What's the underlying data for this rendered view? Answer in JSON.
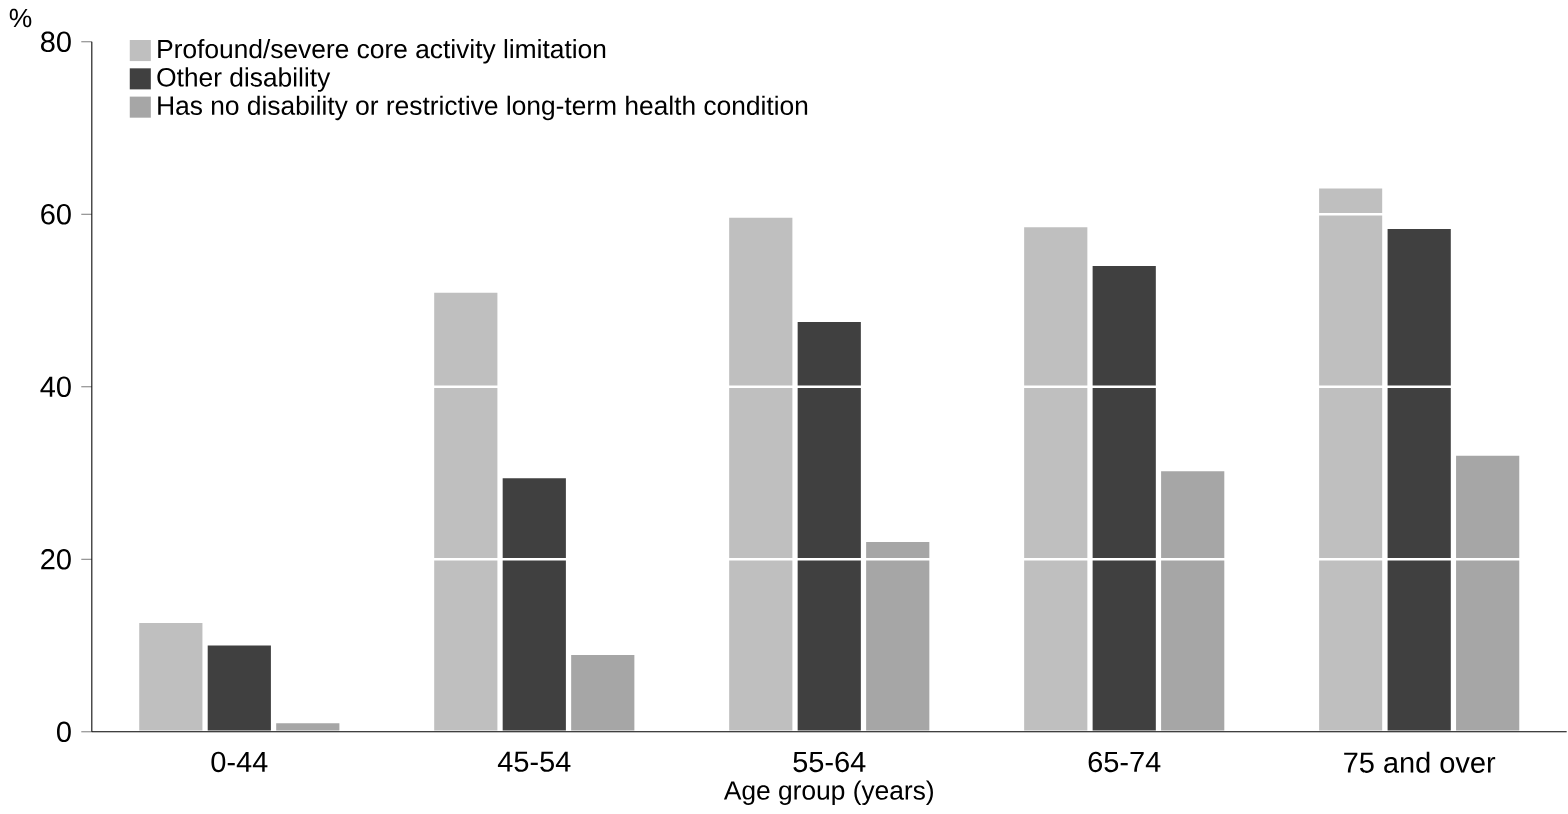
{
  "chart_data": {
    "type": "bar",
    "xlabel": "Age group (years)",
    "ylabel": "%",
    "categories": [
      "0-44",
      "45-54",
      "55-64",
      "65-74",
      "75 and over"
    ],
    "series": [
      {
        "name": "Profound/severe core activity limitation",
        "color": "#bfbfbf",
        "values": [
          12.6,
          50.9,
          59.6,
          58.5,
          63
        ]
      },
      {
        "name": "Other disability",
        "color": "#404040",
        "values": [
          10,
          29.4,
          47.5,
          54,
          58.3
        ]
      },
      {
        "name": "Has no disability or restrictive long-term health condition",
        "color": "#a6a6a6",
        "values": [
          1,
          8.9,
          22,
          30.2,
          32
        ]
      }
    ],
    "ylim": [
      0,
      80
    ],
    "yticks": [
      0,
      20,
      40,
      60,
      80
    ],
    "grid": "y",
    "legend": "top left"
  }
}
